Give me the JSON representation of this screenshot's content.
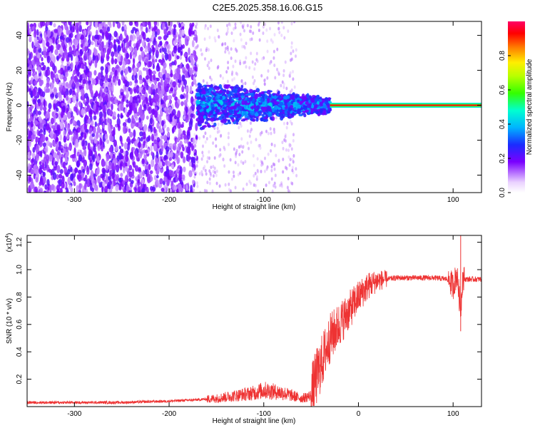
{
  "title": "C2E5.2025.358.16.06.G15",
  "colors": {
    "snr_line": "#ee3333",
    "axis": "#000000",
    "background": "#ffffff"
  },
  "chart_data": [
    {
      "type": "heatmap",
      "name": "spectrogram",
      "xlabel": "Height of straight line (km)",
      "ylabel": "Frequency (Hz)",
      "xlim": [
        -350,
        130
      ],
      "ylim": [
        -50,
        48
      ],
      "x_ticks": [
        -300,
        -200,
        -100,
        0,
        100
      ],
      "y_ticks": [
        -40,
        -20,
        0,
        20,
        40
      ],
      "colorbar": {
        "label": "Normalized spectral amplitude",
        "range": [
          0,
          1
        ],
        "ticks": [
          0.0,
          0.2,
          0.4,
          0.6,
          0.8
        ]
      },
      "features": [
        {
          "desc": "broadband noise",
          "x_range": [
            -350,
            -170
          ],
          "f_range": [
            -50,
            48
          ],
          "amplitude": 0.1
        },
        {
          "desc": "narrowing signal",
          "x_range": [
            -170,
            -30
          ],
          "f_range": [
            -8,
            8
          ],
          "amplitude": 0.3
        },
        {
          "desc": "strong carrier line",
          "x_range": [
            -30,
            130
          ],
          "f_center": 0,
          "amplitude": 1.0
        }
      ]
    },
    {
      "type": "line",
      "name": "snr",
      "xlabel": "Height of straight line (km)",
      "ylabel": "SNR (10 * v/v)",
      "y_scale_label": "(x10",
      "y_scale_exp": "4",
      "xlim": [
        -350,
        130
      ],
      "ylim": [
        0.0,
        1.25
      ],
      "x_ticks": [
        -300,
        -200,
        -100,
        0,
        100
      ],
      "y_ticks": [
        0.2,
        0.4,
        0.6,
        0.8,
        1.0,
        1.2
      ],
      "y_tick_labels": [
        "0.2",
        "0.4",
        "0.6",
        "0.8",
        "1.0",
        "1.2"
      ],
      "series": [
        {
          "name": "SNR",
          "x": [
            -350,
            -300,
            -250,
            -200,
            -170,
            -150,
            -130,
            -110,
            -100,
            -90,
            -80,
            -70,
            -60,
            -50,
            -45,
            -40,
            -35,
            -30,
            -25,
            -20,
            -15,
            -10,
            0,
            10,
            20,
            30,
            40,
            60,
            80,
            95,
            100,
            104,
            108,
            110,
            120,
            130
          ],
          "y": [
            0.03,
            0.03,
            0.03,
            0.04,
            0.05,
            0.06,
            0.08,
            0.1,
            0.12,
            0.11,
            0.1,
            0.08,
            0.06,
            0.08,
            0.2,
            0.3,
            0.4,
            0.5,
            0.55,
            0.6,
            0.65,
            0.7,
            0.8,
            0.88,
            0.92,
            0.93,
            0.94,
            0.94,
            0.94,
            0.93,
            0.88,
            0.97,
            0.7,
            0.93,
            0.93,
            0.93
          ]
        }
      ]
    }
  ]
}
